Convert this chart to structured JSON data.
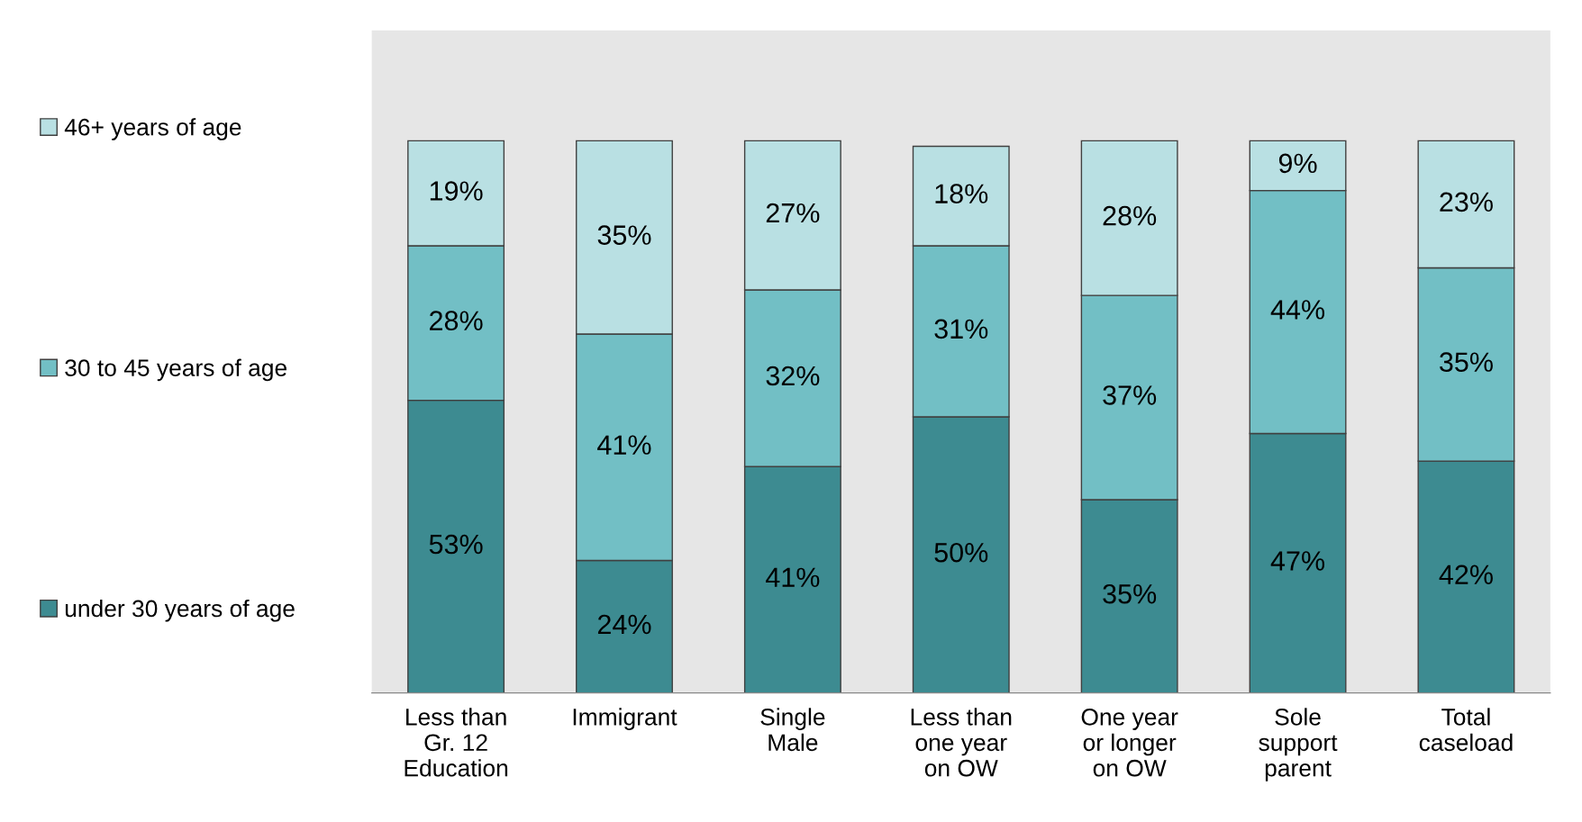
{
  "chart_data": {
    "type": "bar",
    "stacked": true,
    "categories": [
      "Less than\nGr. 12\nEducation",
      "Immigrant",
      "Single\nMale",
      "Less than\none year\non OW",
      "One year\nor longer\non OW",
      "Sole\nsupport\nparent",
      "Total\ncaseload"
    ],
    "series": [
      {
        "name": "under 30 years of age",
        "color": "#3d8b91",
        "values": [
          53,
          24,
          41,
          50,
          35,
          47,
          42
        ],
        "value_labels": [
          "53%",
          "24%",
          "41%",
          "50%",
          "35%",
          "47%",
          "42%"
        ]
      },
      {
        "name": "30 to 45 years of age",
        "color": "#72bfc5",
        "values": [
          28,
          41,
          32,
          31,
          37,
          44,
          35
        ],
        "value_labels": [
          "28%",
          "41%",
          "32%",
          "31%",
          "37%",
          "44%",
          "35%"
        ]
      },
      {
        "name": "46+ years of age",
        "color": "#b9e0e3",
        "values": [
          19,
          35,
          27,
          18,
          28,
          9,
          23
        ],
        "value_labels": [
          "19%",
          "35%",
          "27%",
          "18%",
          "28%",
          "9%",
          "23%"
        ]
      }
    ],
    "ylim": [
      0,
      120
    ],
    "tick_labels": "x",
    "grid": false,
    "legend": "left"
  }
}
